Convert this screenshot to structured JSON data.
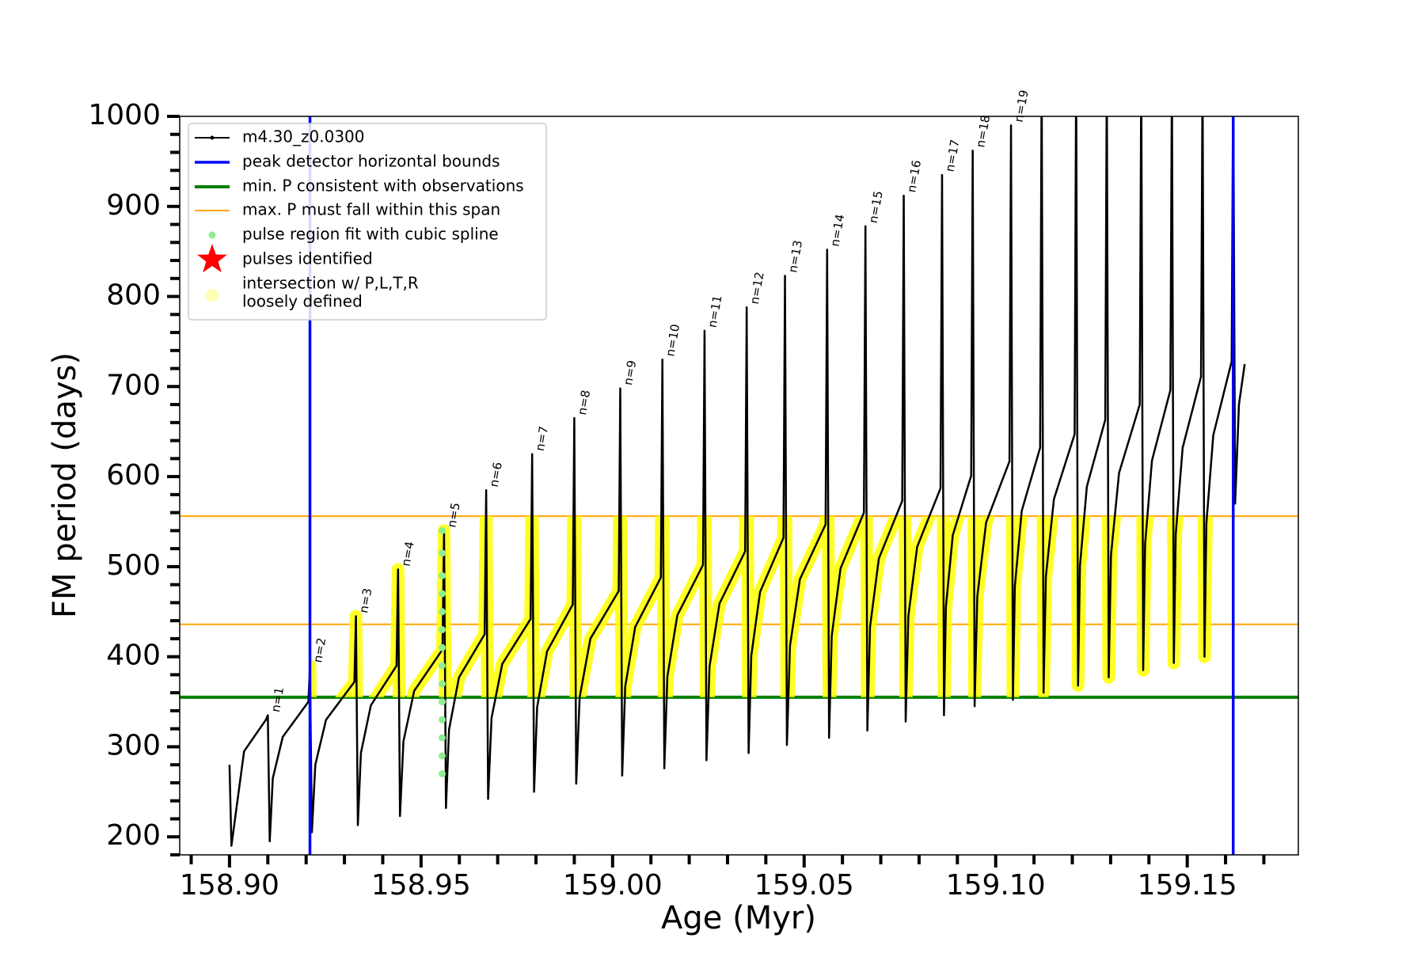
{
  "chart_data": {
    "type": "line",
    "xlabel": "Age (Myr)",
    "ylabel": "FM period (days)",
    "xlim": [
      158.887,
      159.179
    ],
    "ylim": [
      180,
      1000
    ],
    "xticks": [
      {
        "value": 158.9,
        "label": "158.90"
      },
      158.95,
      {
        "value": 159.0,
        "label": "159.00"
      },
      159.05,
      {
        "value": 159.1,
        "label": "159.10"
      },
      159.15
    ],
    "xminorticks": [
      158.89,
      158.91,
      158.92,
      158.93,
      158.94,
      158.96,
      158.97,
      158.98,
      158.99,
      159.01,
      159.02,
      159.03,
      159.04,
      159.06,
      159.07,
      159.08,
      159.09,
      159.11,
      159.12,
      159.13,
      159.14,
      159.16,
      159.17
    ],
    "yticks": [
      200,
      300,
      400,
      500,
      600,
      700,
      800,
      900,
      1000
    ],
    "yminorticks": [
      180,
      220,
      240,
      260,
      280,
      320,
      340,
      360,
      380,
      420,
      440,
      460,
      480,
      520,
      540,
      560,
      580,
      620,
      640,
      660,
      680,
      720,
      740,
      760,
      780,
      820,
      840,
      860,
      880,
      920,
      940,
      960,
      980
    ],
    "series": [
      {
        "name": "m4.30_z0.0300",
        "color": "#000000",
        "x": [
          158.9,
          158.9005,
          158.9038,
          158.9095,
          158.91,
          158.9105,
          158.9113,
          158.9139,
          158.9206,
          158.921,
          158.9215,
          158.9224,
          158.9252,
          158.9326,
          158.933,
          158.9335,
          158.9343,
          158.9369,
          158.9436,
          158.944,
          158.9445,
          158.9454,
          158.9482,
          158.9556,
          158.956,
          158.9565,
          158.9573,
          158.9599,
          158.9666,
          158.967,
          158.9675,
          158.9684,
          158.9712,
          158.9786,
          158.979,
          158.9795,
          158.9803,
          158.9829,
          158.9896,
          158.99,
          158.9905,
          158.9914,
          158.9942,
          159.0016,
          159.002,
          159.0025,
          159.0033,
          159.0059,
          159.0126,
          159.013,
          159.0135,
          159.0143,
          159.0169,
          159.0236,
          159.024,
          159.0245,
          159.0253,
          159.0279,
          159.0346,
          159.035,
          159.0355,
          159.0362,
          159.0385,
          159.0446,
          159.045,
          159.0455,
          159.0463,
          159.0489,
          159.0556,
          159.056,
          159.0565,
          159.0572,
          159.0595,
          159.0656,
          159.066,
          159.0665,
          159.0672,
          159.0695,
          159.0756,
          159.076,
          159.0765,
          159.0772,
          159.0795,
          159.0856,
          159.086,
          159.0865,
          159.087,
          159.0888,
          159.0936,
          159.094,
          159.0945,
          159.0952,
          159.0975,
          159.1036,
          159.104,
          159.1045,
          159.105,
          159.1068,
          159.1116,
          159.112,
          159.1125,
          159.1131,
          159.1152,
          159.1206,
          159.121,
          159.1215,
          159.122,
          159.1238,
          159.1286,
          159.129,
          159.1295,
          159.1301,
          159.1322,
          159.1376,
          159.138,
          159.1385,
          159.139,
          159.1408,
          159.1456,
          159.146,
          159.1465,
          159.147,
          159.1488,
          159.1536,
          159.154,
          159.1545,
          159.155,
          159.1568,
          159.1616,
          159.162,
          159.1625,
          159.1635,
          159.165
        ],
        "values": [
          280,
          190,
          295,
          330,
          335,
          195,
          265,
          311,
          350,
          390,
          205,
          280,
          330,
          372,
          445,
          213,
          293,
          346,
          390,
          497,
          223,
          306,
          362,
          408,
          540,
          232,
          319,
          377,
          425,
          585,
          242,
          332,
          392,
          442,
          625,
          250,
          344,
          406,
          458,
          665,
          259,
          355,
          420,
          473,
          698,
          268,
          367,
          433,
          488,
          730,
          276,
          378,
          446,
          502,
          762,
          285,
          389,
          459,
          517,
          788,
          293,
          401,
          472,
          532,
          823,
          302,
          412,
          486,
          547,
          852,
          310,
          423,
          498,
          560,
          878,
          318,
          433,
          509,
          573,
          912,
          328,
          445,
          522,
          587,
          935,
          335,
          455,
          535,
          601,
          962,
          345,
          467,
          549,
          617,
          990,
          352,
          478,
          562,
          632,
          1050,
          360,
          489,
          575,
          647,
          1050,
          368,
          501,
          589,
          663,
          1050,
          377,
          513,
          604,
          680,
          1050,
          385,
          525,
          618,
          696,
          1050,
          393,
          536,
          632,
          711,
          1050,
          400,
          548,
          646,
          728,
          1050,
          570,
          680,
          725
        ]
      }
    ],
    "vlines": {
      "name": "peak detector horizontal bounds",
      "color": "#0000ff",
      "x": [
        158.921,
        159.162
      ]
    },
    "hlines": [
      {
        "name": "min. P consistent with observations",
        "color": "#008000",
        "y": [
          355
        ]
      },
      {
        "name": "max. P must fall within this span",
        "color": "#ffa500",
        "y": [
          436,
          556
        ]
      }
    ],
    "spline_points": {
      "name": "pulse region fit with cubic spline",
      "color": "#90ee90",
      "x": [
        158.9555,
        158.9555,
        158.9555,
        158.9555,
        158.9555,
        158.9555,
        158.9555,
        158.9555,
        158.9555,
        158.9555,
        158.9555,
        158.9555,
        158.9555,
        158.9555
      ],
      "values": [
        270,
        290,
        310,
        330,
        350,
        370,
        390,
        410,
        430,
        450,
        470,
        490,
        515,
        540
      ]
    },
    "pulses": {
      "name": "pulses identified",
      "color": "#ff0000"
    },
    "intersection": {
      "name": [
        "intersection w/ P,L,T,R",
        "loosely defined"
      ],
      "color": "#ffff00"
    },
    "annotations": [
      {
        "text": "n=1",
        "x": 158.91,
        "y": 335
      },
      {
        "text": "n=2",
        "x": 158.921,
        "y": 390
      },
      {
        "text": "n=3",
        "x": 158.933,
        "y": 445
      },
      {
        "text": "n=4",
        "x": 158.944,
        "y": 497
      },
      {
        "text": "n=5",
        "x": 158.956,
        "y": 540
      },
      {
        "text": "n=6",
        "x": 158.967,
        "y": 585
      },
      {
        "text": "n=7",
        "x": 158.979,
        "y": 625
      },
      {
        "text": "n=8",
        "x": 158.99,
        "y": 665
      },
      {
        "text": "n=9",
        "x": 159.002,
        "y": 698
      },
      {
        "text": "n=10",
        "x": 159.013,
        "y": 730
      },
      {
        "text": "n=11",
        "x": 159.024,
        "y": 762
      },
      {
        "text": "n=12",
        "x": 159.035,
        "y": 788
      },
      {
        "text": "n=13",
        "x": 159.045,
        "y": 823
      },
      {
        "text": "n=14",
        "x": 159.056,
        "y": 852
      },
      {
        "text": "n=15",
        "x": 159.066,
        "y": 878
      },
      {
        "text": "n=16",
        "x": 159.076,
        "y": 912
      },
      {
        "text": "n=17",
        "x": 159.086,
        "y": 935
      },
      {
        "text": "n=18",
        "x": 159.094,
        "y": 962
      },
      {
        "text": "n=19",
        "x": 159.104,
        "y": 990
      }
    ]
  }
}
